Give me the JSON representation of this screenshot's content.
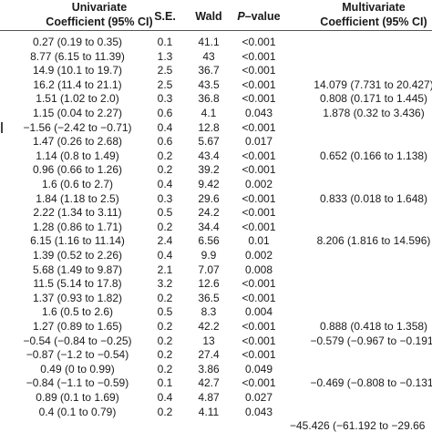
{
  "headers": {
    "univariate_line1": "Univariate",
    "univariate_line2": "Coefficient (95% CI)",
    "se": "S.E.",
    "wald": "Wald",
    "p_value_italic": "P",
    "p_value_rest": "–value",
    "multivariate_line1": "Multivariate",
    "multivariate_line2": "Coefficient (95% CI)"
  },
  "rows": [
    {
      "uni": "0.27 (0.19 to 0.35)",
      "se": "0.1",
      "wald": "41.1",
      "p": "<0.001",
      "multi": ""
    },
    {
      "uni": "8.77 (6.15 to 11.39)",
      "se": "1.3",
      "wald": "43",
      "p": "<0.001",
      "multi": ""
    },
    {
      "uni": "14.9 (10.1 to 19.7)",
      "se": "2.5",
      "wald": "36.7",
      "p": "<0.001",
      "multi": ""
    },
    {
      "uni": "16.2 (11.4 to 21.1)",
      "se": "2.5",
      "wald": "43.5",
      "p": "<0.001",
      "multi": "14.079 (7.731 to 20.427)"
    },
    {
      "uni": "1.51 (1.02 to 2.0)",
      "se": "0.3",
      "wald": "36.8",
      "p": "<0.001",
      "multi": "0.808 (0.171 to 1.445)"
    },
    {
      "uni": "1.15 (0.04 to 2.27)",
      "se": "0.6",
      "wald": "4.1",
      "p": "0.043",
      "multi": "1.878 (0.32 to 3.436)"
    },
    {
      "uni": "−1.56 (−2.42 to −0.71)",
      "se": "0.4",
      "wald": "12.8",
      "p": "<0.001",
      "multi": ""
    },
    {
      "uni": "1.47 (0.26 to 2.68)",
      "se": "0.6",
      "wald": "5.67",
      "p": "0.017",
      "multi": ""
    },
    {
      "uni": "1.14 (0.8 to 1.49)",
      "se": "0.2",
      "wald": "43.4",
      "p": "<0.001",
      "multi": "0.652 (0.166 to 1.138)"
    },
    {
      "uni": "0.96 (0.66 to 1.26)",
      "se": "0.2",
      "wald": "39.2",
      "p": "<0.001",
      "multi": ""
    },
    {
      "uni": "1.6 (0.6 to 2.7)",
      "se": "0.4",
      "wald": "9.42",
      "p": "0.002",
      "multi": ""
    },
    {
      "uni": "1.84 (1.18 to 2.5)",
      "se": "0.3",
      "wald": "29.6",
      "p": "<0.001",
      "multi": "0.833 (0.018 to 1.648)"
    },
    {
      "uni": "2.22 (1.34 to 3.11)",
      "se": "0.5",
      "wald": "24.2",
      "p": "<0.001",
      "multi": ""
    },
    {
      "uni": "1.28 (0.86 to 1.71)",
      "se": "0.2",
      "wald": "34.4",
      "p": "<0.001",
      "multi": ""
    },
    {
      "uni": "6.15 (1.16 to 11.14)",
      "se": "2.4",
      "wald": "6.56",
      "p": "0.01",
      "multi": "8.206 (1.816 to 14.596)"
    },
    {
      "uni": "1.39 (0.52 to 2.26)",
      "se": "0.4",
      "wald": "9.9",
      "p": "0.002",
      "multi": ""
    },
    {
      "uni": "5.68 (1.49 to 9.87)",
      "se": "2.1",
      "wald": "7.07",
      "p": "0.008",
      "multi": ""
    },
    {
      "uni": "11.5 (5.14 to 17.8)",
      "se": "3.2",
      "wald": "12.6",
      "p": "<0.001",
      "multi": ""
    },
    {
      "uni": "1.37 (0.93 to 1.82)",
      "se": "0.2",
      "wald": "36.5",
      "p": "<0.001",
      "multi": ""
    },
    {
      "uni": "1.6 (0.5 to 2.6)",
      "se": "0.5",
      "wald": "8.3",
      "p": "0.004",
      "multi": ""
    },
    {
      "uni": "1.27 (0.89 to 1.65)",
      "se": "0.2",
      "wald": "42.2",
      "p": "<0.001",
      "multi": "0.888 (0.418 to 1.358)"
    },
    {
      "uni": "−0.54 (−0.84 to −0.25)",
      "se": "0.2",
      "wald": "13",
      "p": "<0.001",
      "multi": "−0.579 (−0.967 to −0.191)"
    },
    {
      "uni": "−0.87 (−1.2 to −0.54)",
      "se": "0.2",
      "wald": "27.4",
      "p": "<0.001",
      "multi": ""
    },
    {
      "uni": "0.49 (0 to 0.99)",
      "se": "0.2",
      "wald": "3.86",
      "p": "0.049",
      "multi": ""
    },
    {
      "uni": "−0.84 (−1.1 to −0.59)",
      "se": "0.1",
      "wald": "42.7",
      "p": "<0.001",
      "multi": "−0.469 (−0.808 to −0.131)"
    },
    {
      "uni": "0.89 (0.1 to 1.69)",
      "se": "0.4",
      "wald": "4.87",
      "p": "0.027",
      "multi": ""
    },
    {
      "uni": "0.4 (0.1 to 0.79)",
      "se": "0.2",
      "wald": "4.11",
      "p": "0.043",
      "multi": ""
    },
    {
      "uni": "",
      "se": "",
      "wald": "",
      "p": "",
      "multi": "−45.426 (−61.192 to −29.66"
    }
  ]
}
